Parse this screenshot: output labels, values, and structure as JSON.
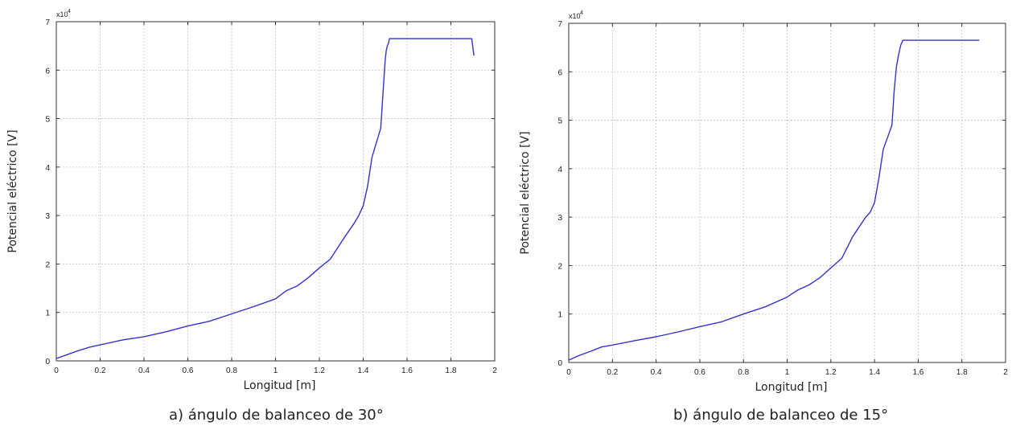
{
  "line_color": "#3333cc",
  "chart_data": [
    {
      "type": "line",
      "caption": "a) ángulo de balanceo de 30°",
      "xlabel": "Longitud [m]",
      "ylabel": "Potencial eléctrico [V]",
      "y_multiplier": "x10",
      "y_multiplier_exp": "4",
      "xlim": [
        0,
        2
      ],
      "ylim": [
        0,
        7
      ],
      "grid": true,
      "x_ticks": [
        "0",
        "0.2",
        "0.4",
        "0.6",
        "0.8",
        "1",
        "1.2",
        "1.4",
        "1.6",
        "1.8",
        "2"
      ],
      "y_ticks": [
        "0",
        "1",
        "2",
        "3",
        "4",
        "5",
        "6",
        "7"
      ],
      "series": [
        {
          "x": [
            0,
            0.05,
            0.1,
            0.15,
            0.2,
            0.3,
            0.4,
            0.5,
            0.6,
            0.7,
            0.8,
            0.9,
            1.0,
            1.05,
            1.1,
            1.15,
            1.2,
            1.25,
            1.3,
            1.33,
            1.36,
            1.38,
            1.4,
            1.42,
            1.44,
            1.46,
            1.48,
            1.49,
            1.5,
            1.505,
            1.51,
            1.515,
            1.52,
            1.6,
            1.7,
            1.8,
            1.895,
            1.905
          ],
          "y": [
            0.05,
            0.13,
            0.21,
            0.28,
            0.33,
            0.43,
            0.5,
            0.6,
            0.72,
            0.82,
            0.97,
            1.12,
            1.28,
            1.45,
            1.55,
            1.72,
            1.92,
            2.1,
            2.45,
            2.65,
            2.85,
            3.0,
            3.2,
            3.6,
            4.2,
            4.5,
            4.8,
            5.5,
            6.2,
            6.4,
            6.5,
            6.55,
            6.65,
            6.65,
            6.65,
            6.65,
            6.65,
            6.3
          ]
        }
      ]
    },
    {
      "type": "line",
      "caption": "b) ángulo de balanceo de 15°",
      "xlabel": "Longitud [m]",
      "ylabel": "Potencial eléctrico [V]",
      "y_multiplier": "x10",
      "y_multiplier_exp": "4",
      "xlim": [
        0,
        2
      ],
      "ylim": [
        0,
        7
      ],
      "grid": true,
      "x_ticks": [
        "0",
        "0.2",
        "0.4",
        "0.6",
        "0.8",
        "1",
        "1.2",
        "1.4",
        "1.6",
        "1.8",
        "2"
      ],
      "y_ticks": [
        "0",
        "1",
        "2",
        "3",
        "4",
        "5",
        "6",
        "7"
      ],
      "series": [
        {
          "x": [
            0,
            0.05,
            0.1,
            0.15,
            0.2,
            0.3,
            0.4,
            0.5,
            0.6,
            0.7,
            0.8,
            0.9,
            1.0,
            1.05,
            1.1,
            1.15,
            1.2,
            1.25,
            1.3,
            1.33,
            1.36,
            1.38,
            1.4,
            1.42,
            1.44,
            1.46,
            1.48,
            1.49,
            1.5,
            1.51,
            1.52,
            1.53,
            1.6,
            1.7,
            1.8,
            1.88
          ],
          "y": [
            0.05,
            0.15,
            0.23,
            0.32,
            0.36,
            0.45,
            0.53,
            0.63,
            0.74,
            0.84,
            1.0,
            1.15,
            1.35,
            1.5,
            1.6,
            1.75,
            1.95,
            2.15,
            2.6,
            2.8,
            3.0,
            3.1,
            3.3,
            3.8,
            4.4,
            4.65,
            4.9,
            5.6,
            6.1,
            6.35,
            6.55,
            6.65,
            6.65,
            6.65,
            6.65,
            6.65
          ]
        }
      ]
    }
  ]
}
